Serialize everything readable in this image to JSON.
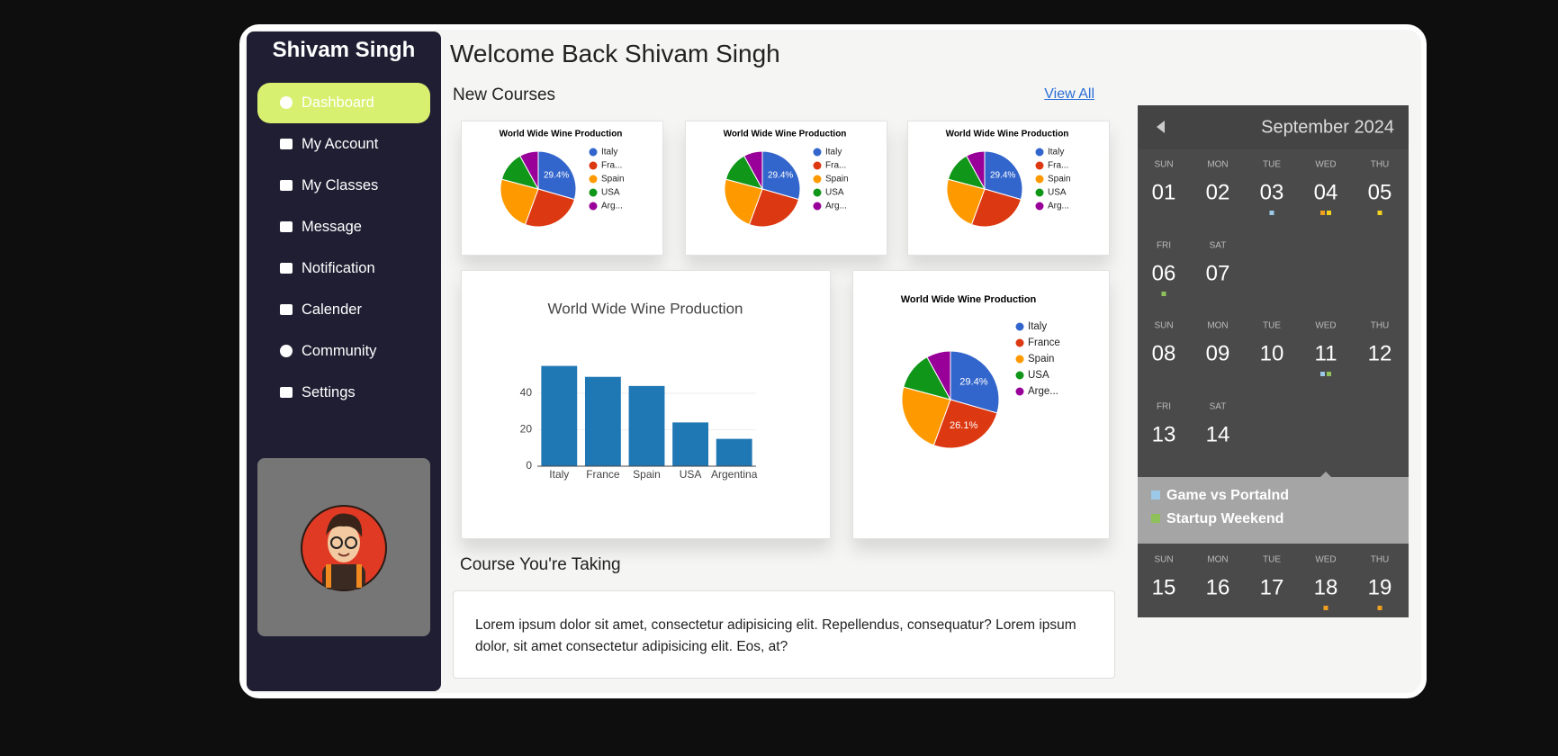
{
  "sidebar": {
    "title": "Shivam Singh",
    "menu": [
      "Dashboard",
      "My Account",
      "My Classes",
      "Message",
      "Notification",
      "Calender",
      "Community",
      "Settings"
    ]
  },
  "header": {
    "title": "Welcome Back Shivam Singh"
  },
  "new_courses": {
    "title": "New Courses",
    "link": "View All"
  },
  "chart_data": [
    {
      "type": "pie",
      "title": "World Wide Wine Production",
      "categories": [
        "Italy",
        "Fra...",
        "Spain",
        "USA",
        "Arg..."
      ],
      "values": [
        29.4,
        26.1,
        23.5,
        12.8,
        8.0
      ],
      "value_labels": [
        "29.4%",
        null,
        null,
        null,
        null
      ],
      "colors": [
        "#3366cc",
        "#dc3912",
        "#ff9900",
        "#109618",
        "#990099"
      ]
    },
    {
      "type": "pie",
      "title": "World Wide Wine Production",
      "categories": [
        "Italy",
        "Fra...",
        "Spain",
        "USA",
        "Arg..."
      ],
      "values": [
        29.4,
        26.1,
        23.5,
        12.8,
        8.0
      ],
      "value_labels": [
        "29.4%",
        null,
        null,
        null,
        null
      ],
      "colors": [
        "#3366cc",
        "#dc3912",
        "#ff9900",
        "#109618",
        "#990099"
      ]
    },
    {
      "type": "pie",
      "title": "World Wide Wine Production",
      "categories": [
        "Italy",
        "Fra...",
        "Spain",
        "USA",
        "Arg..."
      ],
      "values": [
        29.4,
        26.1,
        23.5,
        12.8,
        8.0
      ],
      "value_labels": [
        "29.4%",
        null,
        null,
        null,
        null
      ],
      "colors": [
        "#3366cc",
        "#dc3912",
        "#ff9900",
        "#109618",
        "#990099"
      ]
    },
    {
      "type": "bar",
      "title": "World Wide Wine Production",
      "categories": [
        "Italy",
        "France",
        "Spain",
        "USA",
        "Argentina"
      ],
      "values": [
        55,
        49,
        44,
        24,
        15
      ],
      "color": "#1f77b4",
      "ylim": [
        0,
        58
      ],
      "yticks": [
        0,
        20,
        40
      ],
      "grid": true
    },
    {
      "type": "pie",
      "title": "World Wide Wine Production",
      "categories": [
        "Italy",
        "France",
        "Spain",
        "USA",
        "Arge..."
      ],
      "values": [
        29.4,
        26.1,
        23.5,
        12.8,
        8.0
      ],
      "value_labels": [
        "29.4%",
        "26.1%",
        null,
        null,
        null
      ],
      "colors": [
        "#3366cc",
        "#dc3912",
        "#ff9900",
        "#109618",
        "#990099"
      ]
    }
  ],
  "course": {
    "title": "Course You're Taking",
    "text": "Lorem ipsum dolor sit amet, consectetur adipisicing elit. Repellendus, consequatur? Lorem ipsum dolor, sit amet consectetur adipisicing elit. Eos, at?"
  },
  "calendar": {
    "month": "September 2024",
    "weeks": [
      [
        {
          "weekday": "SUN",
          "day": "01",
          "dots": []
        },
        {
          "weekday": "MON",
          "day": "02",
          "dots": []
        },
        {
          "weekday": "TUE",
          "day": "03",
          "dots": [
            "#9cc9e8"
          ]
        },
        {
          "weekday": "WED",
          "day": "04",
          "dots": [
            "#f0a020",
            "#f2d21e"
          ]
        },
        {
          "weekday": "THU",
          "day": "05",
          "dots": [
            "#f2d21e"
          ]
        }
      ],
      [
        {
          "weekday": "FRI",
          "day": "06",
          "dots": [
            "#8fc15a"
          ]
        },
        {
          "weekday": "SAT",
          "day": "07",
          "dots": []
        }
      ],
      [
        {
          "weekday": "SUN",
          "day": "08",
          "dots": []
        },
        {
          "weekday": "MON",
          "day": "09",
          "dots": []
        },
        {
          "weekday": "TUE",
          "day": "10",
          "dots": []
        },
        {
          "weekday": "WED",
          "day": "11",
          "dots": [
            "#9cc9e8",
            "#8fc15a"
          ]
        },
        {
          "weekday": "THU",
          "day": "12",
          "dots": []
        }
      ],
      [
        {
          "weekday": "FRI",
          "day": "13",
          "dots": []
        },
        {
          "weekday": "SAT",
          "day": "14",
          "dots": []
        }
      ],
      [
        {
          "weekday": "SUN",
          "day": "15",
          "dots": []
        },
        {
          "weekday": "MON",
          "day": "16",
          "dots": []
        },
        {
          "weekday": "TUE",
          "day": "17",
          "dots": []
        },
        {
          "weekday": "WED",
          "day": "18",
          "dots": [
            "#f0a020"
          ]
        },
        {
          "weekday": "THU",
          "day": "19",
          "dots": [
            "#f0a020"
          ]
        }
      ]
    ],
    "events": [
      {
        "name": "Game vs Portalnd",
        "color": "#9cc9e8"
      },
      {
        "name": "Startup Weekend",
        "color": "#8fc15a"
      }
    ]
  }
}
